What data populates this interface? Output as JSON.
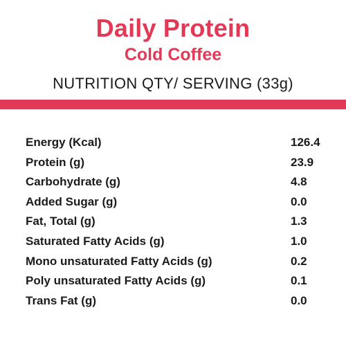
{
  "header": {
    "title": "Daily Protein",
    "subtitle": "Cold Coffee",
    "serving_line": "NUTRITION QTY/ SERVING (33g)"
  },
  "colors": {
    "accent": "#e03a56",
    "text": "#1a1a1a",
    "background": "#ffffff"
  },
  "nutrition": [
    {
      "label": "Energy (Kcal)",
      "value": "126.4"
    },
    {
      "label": "Protein (g)",
      "value": "23.9"
    },
    {
      "label": "Carbohydrate (g)",
      "value": "4.8"
    },
    {
      "label": "Added Sugar (g)",
      "value": "0.0"
    },
    {
      "label": "Fat, Total (g)",
      "value": "1.3"
    },
    {
      "label": "Saturated Fatty Acids (g)",
      "value": "1.0"
    },
    {
      "label": "Mono unsaturated Fatty Acids (g)",
      "value": "0.2"
    },
    {
      "label": "Poly unsaturated Fatty Acids (g)",
      "value": "0.1"
    },
    {
      "label": "Trans Fat (g)",
      "value": "0.0"
    }
  ]
}
